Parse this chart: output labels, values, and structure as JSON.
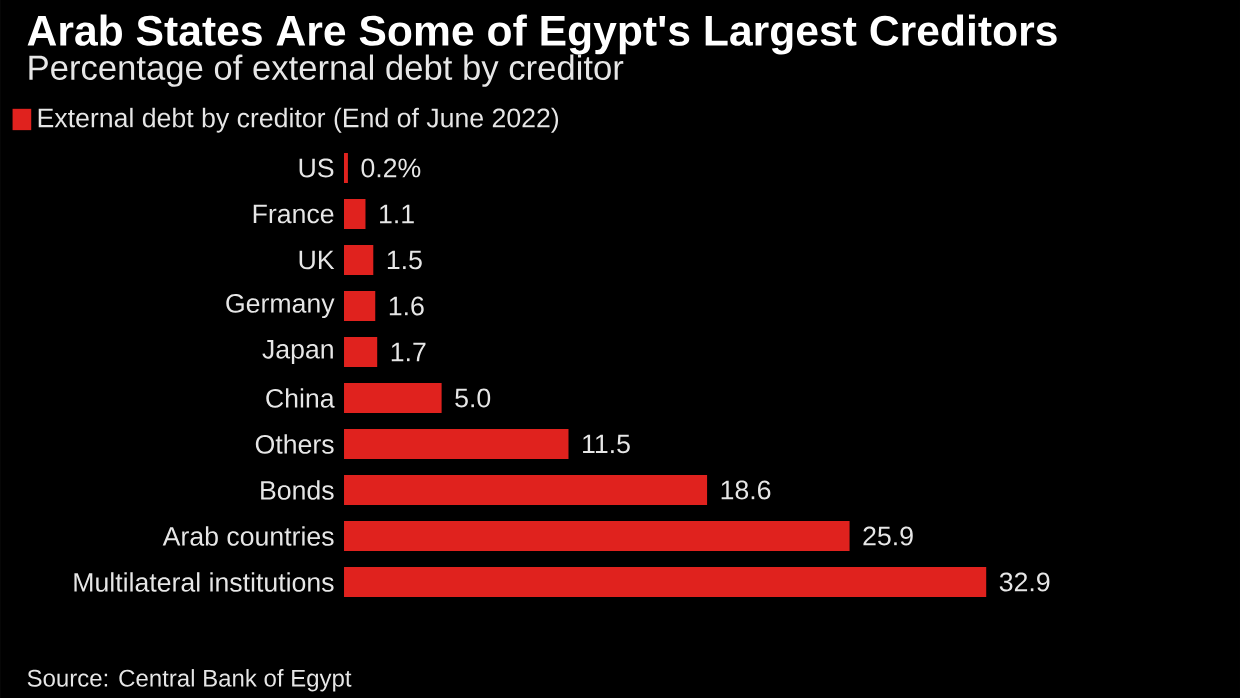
{
  "chart_data": {
    "type": "bar",
    "orientation": "horizontal",
    "title": "Arab States Are Some of Egypt's Largest Creditors",
    "subtitle": "Percentage of external debt by creditor",
    "categories": [
      "US",
      "France",
      "UK",
      "Germany",
      "Japan",
      "China",
      "Others",
      "Bonds",
      "Arab countries",
      "Multilateral institutions"
    ],
    "series": [
      {
        "name": "External debt by creditor (End of June 2022)",
        "color": "#e0221e",
        "values": [
          0.2,
          1.1,
          1.5,
          1.6,
          1.7,
          5.0,
          11.5,
          18.6,
          25.9,
          32.9
        ],
        "value_labels": [
          "0.2%",
          "1.1",
          "1.5",
          "1.6",
          "1.7",
          "5.0",
          "11.5",
          "18.6",
          "25.9",
          "32.9"
        ]
      }
    ],
    "legend": "top left",
    "annotations": [
      "Source: Central Bank of Egypt"
    ]
  }
}
